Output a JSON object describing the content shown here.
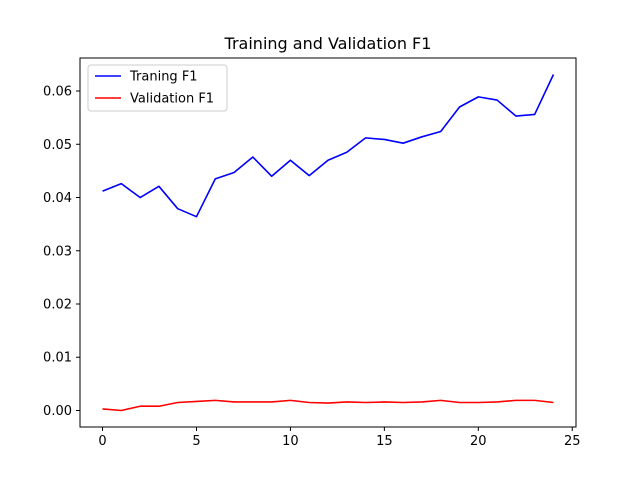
{
  "chart_data": {
    "type": "line",
    "title": "Training and Validation F1",
    "xlabel": "",
    "ylabel": "",
    "xlim": [
      -1.2,
      25.2
    ],
    "ylim": [
      -0.0031,
      0.0662
    ],
    "xticks": [
      0,
      5,
      10,
      15,
      20,
      25
    ],
    "xtick_labels": [
      "0",
      "5",
      "10",
      "15",
      "20",
      "25"
    ],
    "yticks": [
      0.0,
      0.01,
      0.02,
      0.03,
      0.04,
      0.05,
      0.06
    ],
    "ytick_labels": [
      "0.00",
      "0.01",
      "0.02",
      "0.03",
      "0.04",
      "0.05",
      "0.06"
    ],
    "grid": false,
    "legend_position": "top-left",
    "x": [
      0,
      1,
      2,
      3,
      4,
      5,
      6,
      7,
      8,
      9,
      10,
      11,
      12,
      13,
      14,
      15,
      16,
      17,
      18,
      19,
      20,
      21,
      22,
      23,
      24
    ],
    "series": [
      {
        "name": "Traning F1",
        "color": "#0000ff",
        "values": [
          0.0412,
          0.0426,
          0.04,
          0.0421,
          0.0379,
          0.0364,
          0.0435,
          0.0447,
          0.0476,
          0.044,
          0.047,
          0.0441,
          0.047,
          0.0485,
          0.0512,
          0.0509,
          0.0502,
          0.0514,
          0.0524,
          0.057,
          0.0589,
          0.0583,
          0.0553,
          0.0556,
          0.0631
        ]
      },
      {
        "name": "Validation F1",
        "color": "#ff0000",
        "values": [
          0.0003,
          0.0,
          0.0008,
          0.0008,
          0.0015,
          0.0017,
          0.0019,
          0.0016,
          0.0016,
          0.0016,
          0.0019,
          0.0015,
          0.0014,
          0.0016,
          0.0015,
          0.0016,
          0.0015,
          0.0016,
          0.0019,
          0.0015,
          0.0015,
          0.0016,
          0.0019,
          0.0019,
          0.0015
        ]
      }
    ]
  }
}
